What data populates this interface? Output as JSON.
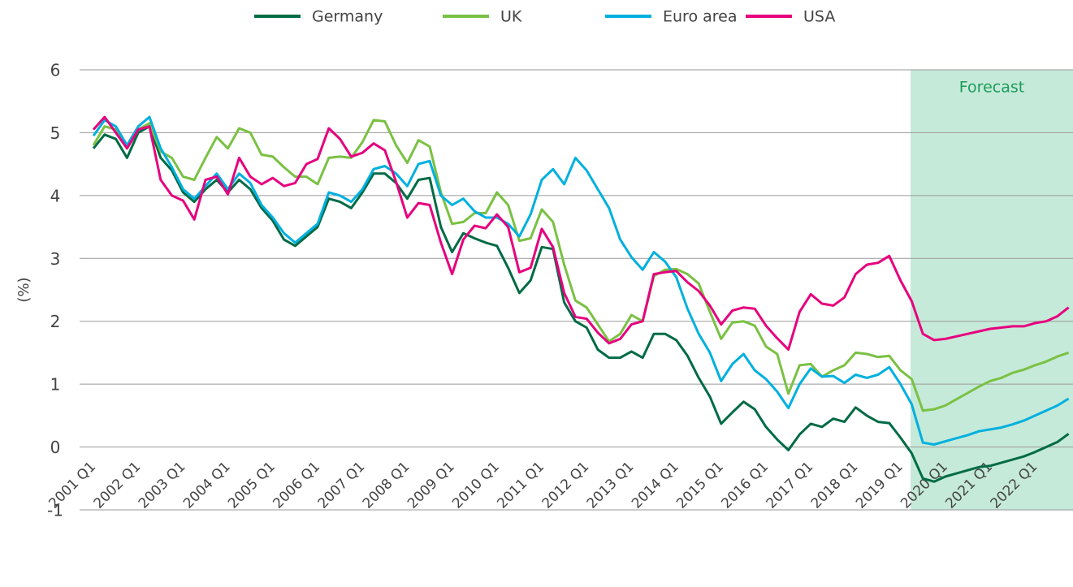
{
  "chart_data": {
    "type": "line",
    "y_label": "(%)",
    "categories": [
      "2001 Q1",
      null,
      null,
      null,
      "2002 Q1",
      null,
      null,
      null,
      "2003 Q1",
      null,
      null,
      null,
      "2004 Q1",
      null,
      null,
      null,
      "2005 Q1",
      null,
      null,
      null,
      "2006 Q1",
      null,
      null,
      null,
      "2007 Q1",
      null,
      null,
      null,
      "2008 Q1",
      null,
      null,
      null,
      "2009 Q1",
      null,
      null,
      null,
      "2010 Q1",
      null,
      null,
      null,
      "2011 Q1",
      null,
      null,
      null,
      "2012 Q1",
      null,
      null,
      null,
      "2013 Q1",
      null,
      null,
      null,
      "2014 Q1",
      null,
      null,
      null,
      "2015 Q1",
      null,
      null,
      null,
      "2016 Q1",
      null,
      null,
      null,
      "2017 Q1",
      null,
      null,
      null,
      "2018 Q1",
      null,
      null,
      null,
      "2019 Q1",
      null,
      null,
      null,
      "2020 Q1",
      null,
      null,
      null,
      "2021 Q1",
      null,
      null,
      null,
      "2022 Q1",
      null,
      null,
      null
    ],
    "series": [
      {
        "name": "Germany",
        "color": "#006b45",
        "values": [
          4.75,
          4.97,
          4.9,
          4.6,
          5.0,
          5.1,
          4.6,
          4.4,
          4.05,
          3.9,
          4.1,
          4.25,
          4.05,
          4.25,
          4.1,
          3.8,
          3.6,
          3.3,
          3.2,
          3.35,
          3.5,
          3.95,
          3.9,
          3.8,
          4.05,
          4.35,
          4.35,
          4.2,
          3.95,
          4.25,
          4.28,
          3.5,
          3.1,
          3.4,
          3.32,
          3.25,
          3.2,
          2.85,
          2.45,
          2.65,
          3.18,
          3.15,
          2.3,
          2.0,
          1.9,
          1.55,
          1.42,
          1.42,
          1.52,
          1.42,
          1.8,
          1.8,
          1.7,
          1.45,
          1.1,
          0.8,
          0.37,
          0.55,
          0.72,
          0.6,
          0.32,
          0.12,
          -0.05,
          0.2,
          0.37,
          0.32,
          0.45,
          0.4,
          0.63,
          0.5,
          0.4,
          0.38,
          0.15,
          -0.1,
          -0.5,
          -0.55,
          -0.47,
          -0.42,
          -0.37,
          -0.32,
          -0.3,
          -0.25,
          -0.2,
          -0.15,
          -0.08,
          0.0,
          0.08,
          0.21
        ]
      },
      {
        "name": "UK",
        "color": "#7ac143",
        "values": [
          4.8,
          5.1,
          5.05,
          4.75,
          5.05,
          5.15,
          4.7,
          4.6,
          4.3,
          4.25,
          4.6,
          4.93,
          4.75,
          5.07,
          5.0,
          4.65,
          4.62,
          4.45,
          4.3,
          4.3,
          4.18,
          4.6,
          4.62,
          4.6,
          4.85,
          5.2,
          5.18,
          4.8,
          4.52,
          4.88,
          4.78,
          4.05,
          3.55,
          3.58,
          3.72,
          3.72,
          4.05,
          3.85,
          3.28,
          3.32,
          3.78,
          3.58,
          2.9,
          2.33,
          2.22,
          1.95,
          1.68,
          1.8,
          2.1,
          2.0,
          2.72,
          2.82,
          2.83,
          2.75,
          2.6,
          2.15,
          1.72,
          1.98,
          2.0,
          1.93,
          1.6,
          1.48,
          0.85,
          1.3,
          1.32,
          1.12,
          1.22,
          1.3,
          1.5,
          1.48,
          1.43,
          1.45,
          1.22,
          1.08,
          0.58,
          0.6,
          0.66,
          0.76,
          0.86,
          0.96,
          1.05,
          1.1,
          1.18,
          1.23,
          1.3,
          1.36,
          1.44,
          1.5
        ]
      },
      {
        "name": "Euro area",
        "color": "#00b0df",
        "values": [
          4.95,
          5.2,
          5.1,
          4.8,
          5.1,
          5.25,
          4.75,
          4.45,
          4.1,
          3.95,
          4.15,
          4.35,
          4.1,
          4.35,
          4.2,
          3.85,
          3.65,
          3.4,
          3.25,
          3.4,
          3.55,
          4.05,
          4.0,
          3.9,
          4.1,
          4.42,
          4.47,
          4.35,
          4.15,
          4.5,
          4.55,
          4.0,
          3.85,
          3.95,
          3.75,
          3.65,
          3.65,
          3.55,
          3.35,
          3.7,
          4.25,
          4.42,
          4.18,
          4.6,
          4.4,
          4.1,
          3.8,
          3.3,
          3.02,
          2.82,
          3.1,
          2.95,
          2.7,
          2.2,
          1.8,
          1.5,
          1.05,
          1.32,
          1.48,
          1.22,
          1.08,
          0.88,
          0.62,
          1.0,
          1.25,
          1.12,
          1.13,
          1.02,
          1.15,
          1.1,
          1.15,
          1.27,
          1.0,
          0.68,
          0.07,
          0.04,
          0.09,
          0.14,
          0.19,
          0.25,
          0.28,
          0.31,
          0.36,
          0.42,
          0.5,
          0.58,
          0.66,
          0.77
        ]
      },
      {
        "name": "USA",
        "color": "#e6007e",
        "values": [
          5.05,
          5.25,
          5.0,
          4.75,
          5.05,
          5.1,
          4.25,
          4.0,
          3.92,
          3.62,
          4.25,
          4.3,
          4.02,
          4.6,
          4.3,
          4.18,
          4.28,
          4.15,
          4.2,
          4.5,
          4.58,
          5.07,
          4.9,
          4.62,
          4.68,
          4.83,
          4.72,
          4.22,
          3.65,
          3.88,
          3.85,
          3.25,
          2.75,
          3.3,
          3.52,
          3.48,
          3.7,
          3.5,
          2.78,
          2.85,
          3.47,
          3.18,
          2.45,
          2.07,
          2.04,
          1.82,
          1.65,
          1.72,
          1.95,
          2.0,
          2.75,
          2.78,
          2.8,
          2.62,
          2.48,
          2.25,
          1.95,
          2.17,
          2.22,
          2.2,
          1.93,
          1.73,
          1.55,
          2.15,
          2.43,
          2.28,
          2.25,
          2.38,
          2.75,
          2.9,
          2.93,
          3.04,
          2.65,
          2.32,
          1.8,
          1.7,
          1.72,
          1.76,
          1.8,
          1.84,
          1.88,
          1.9,
          1.92,
          1.92,
          1.97,
          2.0,
          2.08,
          2.22
        ]
      }
    ],
    "ylim": [
      -1,
      6
    ],
    "yticks": [
      -1,
      0,
      1,
      2,
      3,
      4,
      5,
      6
    ],
    "grid": true,
    "legend": "top",
    "shaded_region": {
      "label": "Forecast",
      "start_index": 73,
      "color": "#c6ead9",
      "label_color": "#1a9c5a"
    }
  }
}
